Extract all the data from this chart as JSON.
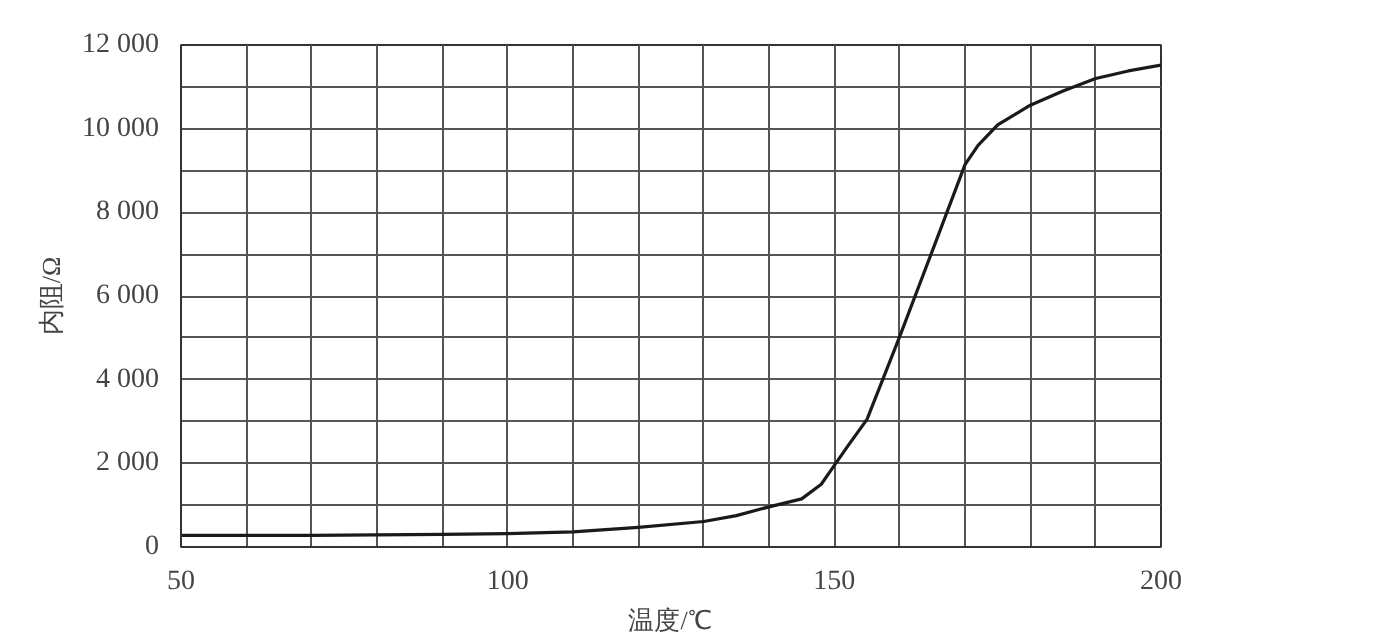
{
  "chart_data": {
    "type": "line",
    "xlabel": "温度/℃",
    "ylabel": "内阻/Ω",
    "series": [
      {
        "color": "#1a1a1a",
        "x": [
          50,
          70,
          90,
          100,
          110,
          120,
          130,
          135,
          140,
          145,
          148,
          150,
          152,
          155,
          160,
          165,
          170,
          172,
          175,
          180,
          185,
          190,
          195,
          200
        ],
        "values": [
          280,
          280,
          300,
          320,
          360,
          470,
          610,
          750,
          960,
          1150,
          1500,
          1950,
          2400,
          3050,
          5030,
          7080,
          9140,
          9600,
          10090,
          10560,
          10900,
          11200,
          11380,
          11520
        ]
      }
    ],
    "xlim": [
      50,
      200
    ],
    "xticks": [
      50,
      {
        "value": 60,
        "label": null
      },
      {
        "value": 70,
        "label": null
      },
      {
        "value": 80,
        "label": null
      },
      {
        "value": 90,
        "label": null
      },
      100,
      {
        "value": 110,
        "label": null
      },
      {
        "value": 120,
        "label": null
      },
      {
        "value": 130,
        "label": null
      },
      {
        "value": 140,
        "label": null
      },
      150,
      {
        "value": 160,
        "label": null
      },
      {
        "value": 170,
        "label": null
      },
      {
        "value": 180,
        "label": null
      },
      {
        "value": 190,
        "label": null
      },
      200
    ],
    "ylim": [
      0,
      12000
    ],
    "yticks": [
      {
        "value": 0,
        "label": "0"
      },
      {
        "value": 1000,
        "label": null
      },
      {
        "value": 2000,
        "label": "2 000"
      },
      {
        "value": 3000,
        "label": null
      },
      {
        "value": 4000,
        "label": "4 000"
      },
      {
        "value": 5000,
        "label": null
      },
      {
        "value": 6000,
        "label": "6 000"
      },
      {
        "value": 7000,
        "label": null
      },
      {
        "value": 8000,
        "label": "8 000"
      },
      {
        "value": 9000,
        "label": null
      },
      {
        "value": 10000,
        "label": "10 000"
      },
      {
        "value": 11000,
        "label": null
      },
      {
        "value": 12000,
        "label": "12 000"
      }
    ],
    "grid": true,
    "marker": "none",
    "line_style": "solid"
  }
}
